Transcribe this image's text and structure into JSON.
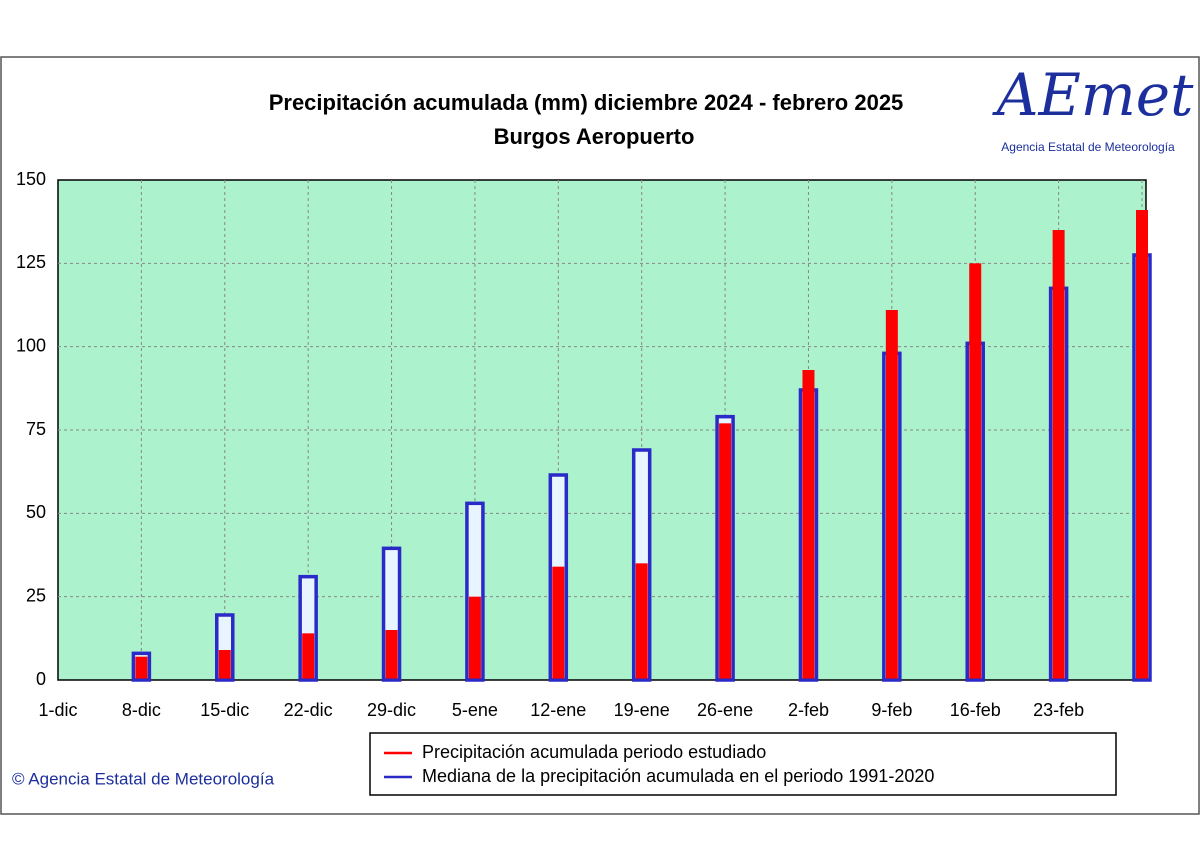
{
  "chart_data": {
    "type": "bar",
    "title": "Precipitación acumulada (mm) diciembre 2024 - febrero 2025",
    "subtitle": "Burgos Aeropuerto",
    "categories": [
      "1-dic",
      "8-dic",
      "15-dic",
      "22-dic",
      "29-dic",
      "5-ene",
      "12-ene",
      "19-ene",
      "26-ene",
      "2-feb",
      "9-feb",
      "16-feb",
      "23-feb",
      null
    ],
    "series": [
      {
        "name": "Precipitación acumulada periodo estudiado",
        "color": "#ff0000",
        "values": [
          null,
          7,
          9,
          14,
          15,
          25,
          34,
          35,
          77,
          93,
          111,
          125,
          135,
          141
        ]
      },
      {
        "name": "Mediana de la precipitación acumulada en el periodo 1991-2020",
        "color": "#2a2ac8",
        "values": [
          null,
          8,
          19.5,
          31,
          39.5,
          53,
          61.5,
          69,
          79,
          87,
          98,
          101,
          117.5,
          127.5
        ]
      }
    ],
    "ylim": [
      0,
      150
    ],
    "yticks": [
      0,
      25,
      50,
      75,
      100,
      125,
      150
    ],
    "grid": true,
    "plot_color": "#acf2cc"
  },
  "logo": {
    "text": "AEmet",
    "subtitle": "Agencia Estatal de Meteorología"
  },
  "footer": "© Agencia Estatal de Meteorología"
}
